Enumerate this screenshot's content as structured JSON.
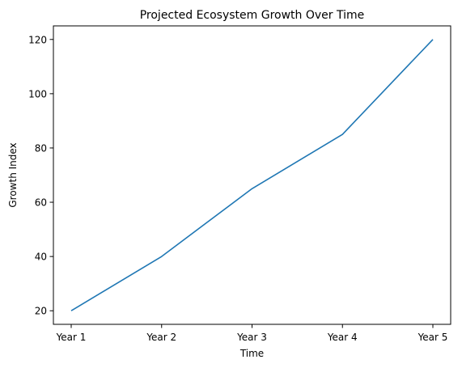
{
  "chart_data": {
    "type": "line",
    "title": "Projected Ecosystem Growth Over Time",
    "xlabel": "Time",
    "ylabel": "Growth Index",
    "categories": [
      "Year 1",
      "Year 2",
      "Year 3",
      "Year 4",
      "Year 5"
    ],
    "series": [
      {
        "values": [
          20,
          40,
          65,
          85,
          120
        ],
        "color": "#1f77b4"
      }
    ],
    "ylim": [
      15,
      125
    ],
    "yticks": [
      20,
      40,
      60,
      80,
      100,
      120
    ],
    "grid": false,
    "legend": "none"
  }
}
